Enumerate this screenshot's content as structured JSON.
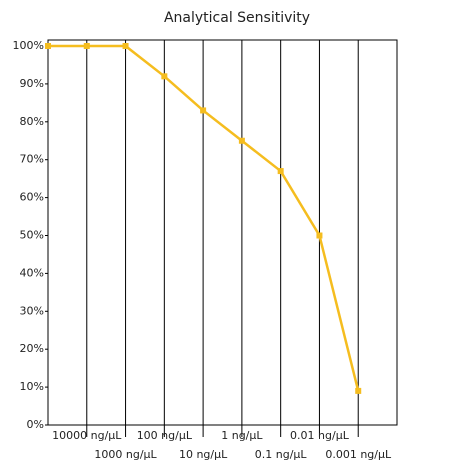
{
  "chart_data": {
    "type": "line",
    "title": "Analytical Sensitivity",
    "categories": [
      null,
      "10000 ng/µL",
      "1000 ng/µL",
      "100 ng/µL",
      "10 ng/µL",
      "1 ng/µL",
      "0.1 ng/µL",
      "0.01 ng/µL",
      "0.001 ng/µL"
    ],
    "values": [
      100,
      100,
      100,
      92,
      83,
      75,
      67,
      50,
      9
    ],
    "color": "#f5bd1f",
    "ylim": [
      0,
      100
    ],
    "yticks": [
      {
        "value": 0,
        "label": "0%"
      },
      {
        "value": 10,
        "label": "10%"
      },
      {
        "value": 20,
        "label": "20%"
      },
      {
        "value": 30,
        "label": "30%"
      },
      {
        "value": 40,
        "label": "40%"
      },
      {
        "value": 50,
        "label": "50%"
      },
      {
        "value": 60,
        "label": "60%"
      },
      {
        "value": 70,
        "label": "70%"
      },
      {
        "value": 80,
        "label": "80%"
      },
      {
        "value": 90,
        "label": "90%"
      },
      {
        "value": 100,
        "label": "100%"
      }
    ],
    "grid": true
  }
}
